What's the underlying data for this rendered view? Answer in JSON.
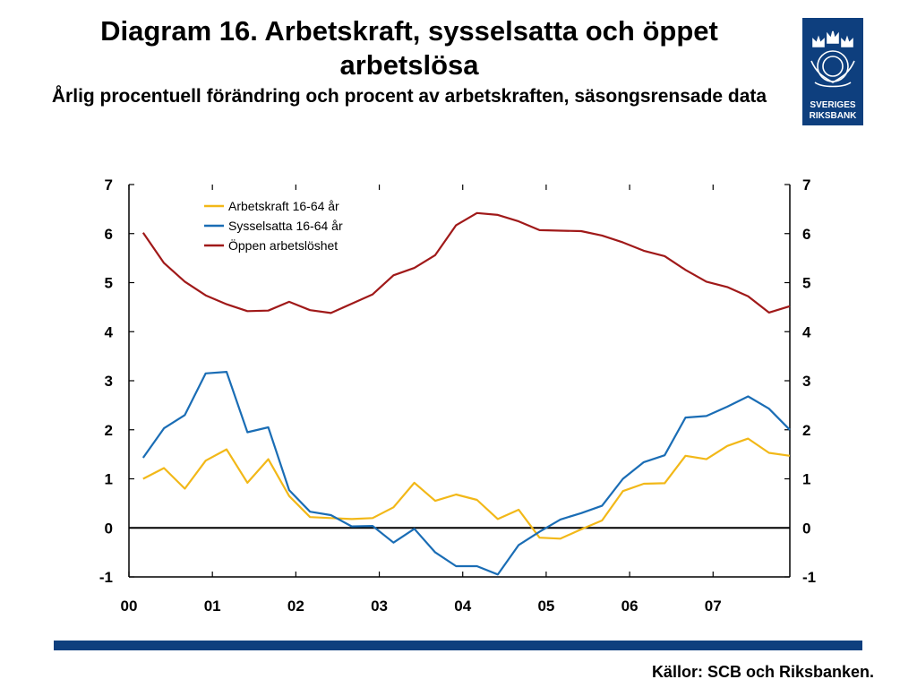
{
  "header": {
    "title": "Diagram 16. Arbetskraft, sysselsatta och öppet arbetslösa",
    "subtitle": "Årlig procentuell förändring och procent av arbetskraften, säsongsrensade data"
  },
  "logo": {
    "line1": "SVERIGES",
    "line2": "RIKSBANK",
    "icon": "crown-emblem-icon",
    "color": "#0e3f7e"
  },
  "source": "Källor: SCB och Riksbanken.",
  "chart_data": {
    "type": "line",
    "x": [
      2000.17,
      2000.42,
      2000.67,
      2000.92,
      2001.17,
      2001.42,
      2001.67,
      2001.92,
      2002.17,
      2002.42,
      2002.67,
      2002.92,
      2003.17,
      2003.42,
      2003.67,
      2003.92,
      2004.17,
      2004.42,
      2004.67,
      2004.92,
      2005.17,
      2005.42,
      2005.67,
      2005.92,
      2006.17,
      2006.42,
      2006.67,
      2006.92,
      2007.17,
      2007.42,
      2007.67,
      2007.92
    ],
    "series": [
      {
        "name": "Arbetskraft 16-64 år",
        "color": "#f2b818",
        "values": [
          1.0,
          1.22,
          0.8,
          1.37,
          1.6,
          0.92,
          1.4,
          0.65,
          0.22,
          0.2,
          0.18,
          0.2,
          0.42,
          0.92,
          0.55,
          0.68,
          0.57,
          0.18,
          0.37,
          -0.2,
          -0.22,
          -0.03,
          0.15,
          0.75,
          0.9,
          0.91,
          1.47,
          1.4,
          1.67,
          1.82,
          1.53,
          1.47
        ]
      },
      {
        "name": "Sysselsatta 16-64 år",
        "color": "#1a6db5",
        "values": [
          1.43,
          2.03,
          2.3,
          3.15,
          3.18,
          1.95,
          2.05,
          0.77,
          0.33,
          0.26,
          0.03,
          0.04,
          -0.3,
          -0.02,
          -0.5,
          -0.78,
          -0.78,
          -0.95,
          -0.35,
          -0.08,
          0.17,
          0.3,
          0.45,
          1.0,
          1.34,
          1.48,
          2.25,
          2.28,
          2.47,
          2.68,
          2.43,
          2.0
        ]
      },
      {
        "name": "Öppen arbetslöshet",
        "color": "#a01919",
        "values": [
          6.02,
          5.4,
          5.02,
          4.74,
          4.56,
          4.42,
          4.43,
          4.61,
          4.44,
          4.38,
          4.57,
          4.76,
          5.15,
          5.3,
          5.56,
          6.17,
          6.42,
          6.38,
          6.25,
          6.07,
          6.06,
          6.05,
          5.96,
          5.82,
          5.65,
          5.54,
          5.26,
          5.02,
          4.91,
          4.72,
          4.39,
          4.52
        ]
      }
    ],
    "x_tick_labels": [
      "00",
      "01",
      "02",
      "03",
      "04",
      "05",
      "06",
      "07"
    ],
    "y_ticks_left": [
      "7",
      "6",
      "5",
      "4",
      "3",
      "2",
      "1",
      "0",
      "-1"
    ],
    "y_ticks_right": [
      "7",
      "6",
      "5",
      "4",
      "3",
      "2",
      "1",
      "0",
      "-1"
    ],
    "xlim": [
      2000.0,
      2007.92
    ],
    "ylim": [
      -1,
      7
    ],
    "grid": false,
    "legend_position": "top-left",
    "zero_line": true
  }
}
